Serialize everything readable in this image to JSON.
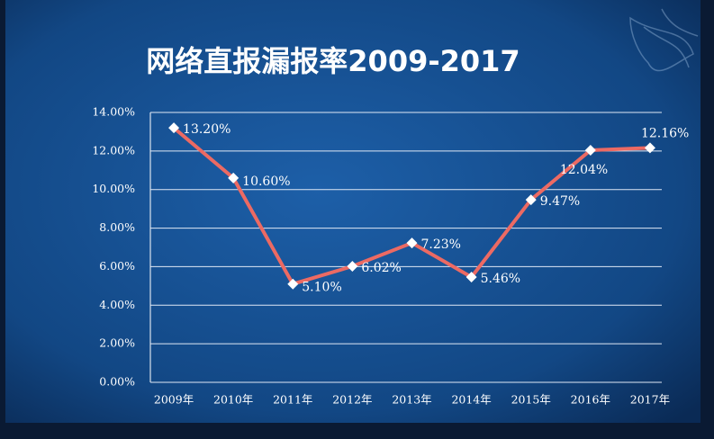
{
  "chart_data": {
    "type": "line",
    "title": "网络直报漏报率2009-2017",
    "categories": [
      "2009年",
      "2010年",
      "2011年",
      "2012年",
      "2013年",
      "2014年",
      "2015年",
      "2016年",
      "2017年"
    ],
    "values": [
      13.2,
      10.6,
      5.1,
      6.02,
      7.23,
      5.46,
      9.47,
      12.04,
      12.16
    ],
    "value_labels": [
      "13.20%",
      "10.60%",
      "5.10%",
      "6.02%",
      "7.23%",
      "5.46%",
      "9.47%",
      "12.04%",
      "12.16%"
    ],
    "color": "#ec6a63",
    "ylim": [
      0,
      14
    ],
    "yticks": [
      {
        "value": 0,
        "label": "0.00%"
      },
      {
        "value": 2,
        "label": "2.00%"
      },
      {
        "value": 4,
        "label": "4.00%"
      },
      {
        "value": 6,
        "label": "6.00%"
      },
      {
        "value": 8,
        "label": "8.00%"
      },
      {
        "value": 10,
        "label": "10.00%"
      },
      {
        "value": 12,
        "label": "12.00%"
      },
      {
        "value": 14,
        "label": "14.00%"
      }
    ],
    "grid": true
  }
}
